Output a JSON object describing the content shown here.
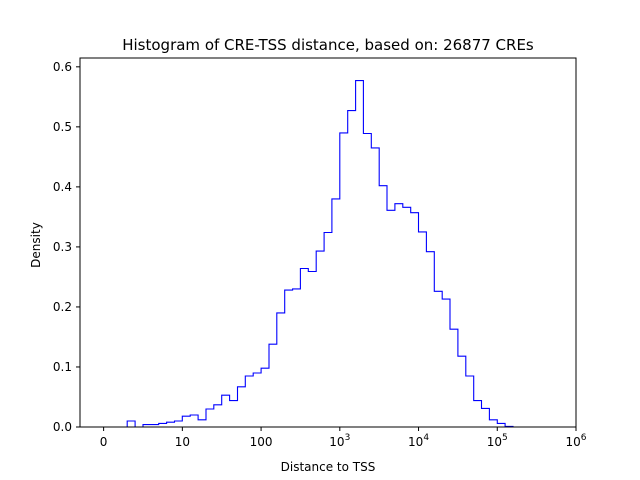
{
  "chart_data": {
    "type": "bar",
    "title": "Histogram of CRE-TSS distance, based on: 26877 CREs",
    "xlabel": "Distance to TSS",
    "ylabel": "Density",
    "x_scale": "log10(1+distance)",
    "xlim": [
      0,
      6
    ],
    "ylim": [
      0,
      0.6
    ],
    "x_ticks": [
      {
        "value": 0,
        "label": "0",
        "exp": ""
      },
      {
        "value": 1,
        "label": "10",
        "exp": ""
      },
      {
        "value": 2,
        "label": "100",
        "exp": ""
      },
      {
        "value": 3,
        "label": "10",
        "exp": "3"
      },
      {
        "value": 4,
        "label": "10",
        "exp": "4"
      },
      {
        "value": 5,
        "label": "10",
        "exp": "5"
      },
      {
        "value": 6,
        "label": "10",
        "exp": "6"
      }
    ],
    "y_ticks": [
      "0.0",
      "0.1",
      "0.2",
      "0.3",
      "0.4",
      "0.5",
      "0.6"
    ],
    "grid": false,
    "legend": "none",
    "histtype": "step",
    "color": "#0000ff",
    "bin_edges": [
      0.0,
      0.1,
      0.2,
      0.3,
      0.4,
      0.5,
      0.6,
      0.7,
      0.8,
      0.9,
      1.0,
      1.1,
      1.2,
      1.3,
      1.4,
      1.5,
      1.6,
      1.7,
      1.8,
      1.9,
      2.0,
      2.1,
      2.2,
      2.3,
      2.4,
      2.5,
      2.6,
      2.7,
      2.8,
      2.9,
      3.0,
      3.1,
      3.2,
      3.3,
      3.4,
      3.5,
      3.6,
      3.7,
      3.8,
      3.9,
      4.0,
      4.1,
      4.2,
      4.3,
      4.4,
      4.5,
      4.6,
      4.7,
      4.8,
      4.9,
      5.0,
      5.1,
      5.2,
      5.3,
      5.4,
      5.5,
      5.6
    ],
    "values": [
      0.0,
      0.0,
      0.0,
      0.01,
      0.0,
      0.004,
      0.004,
      0.006,
      0.008,
      0.01,
      0.018,
      0.02,
      0.012,
      0.03,
      0.037,
      0.053,
      0.044,
      0.067,
      0.085,
      0.09,
      0.098,
      0.138,
      0.19,
      0.228,
      0.23,
      0.264,
      0.259,
      0.293,
      0.324,
      0.38,
      0.49,
      0.527,
      0.577,
      0.489,
      0.465,
      0.402,
      0.361,
      0.372,
      0.366,
      0.357,
      0.325,
      0.292,
      0.226,
      0.213,
      0.163,
      0.118,
      0.085,
      0.044,
      0.031,
      0.012,
      0.006,
      0.001,
      0.0,
      0.0,
      0.0,
      0.0
    ]
  }
}
